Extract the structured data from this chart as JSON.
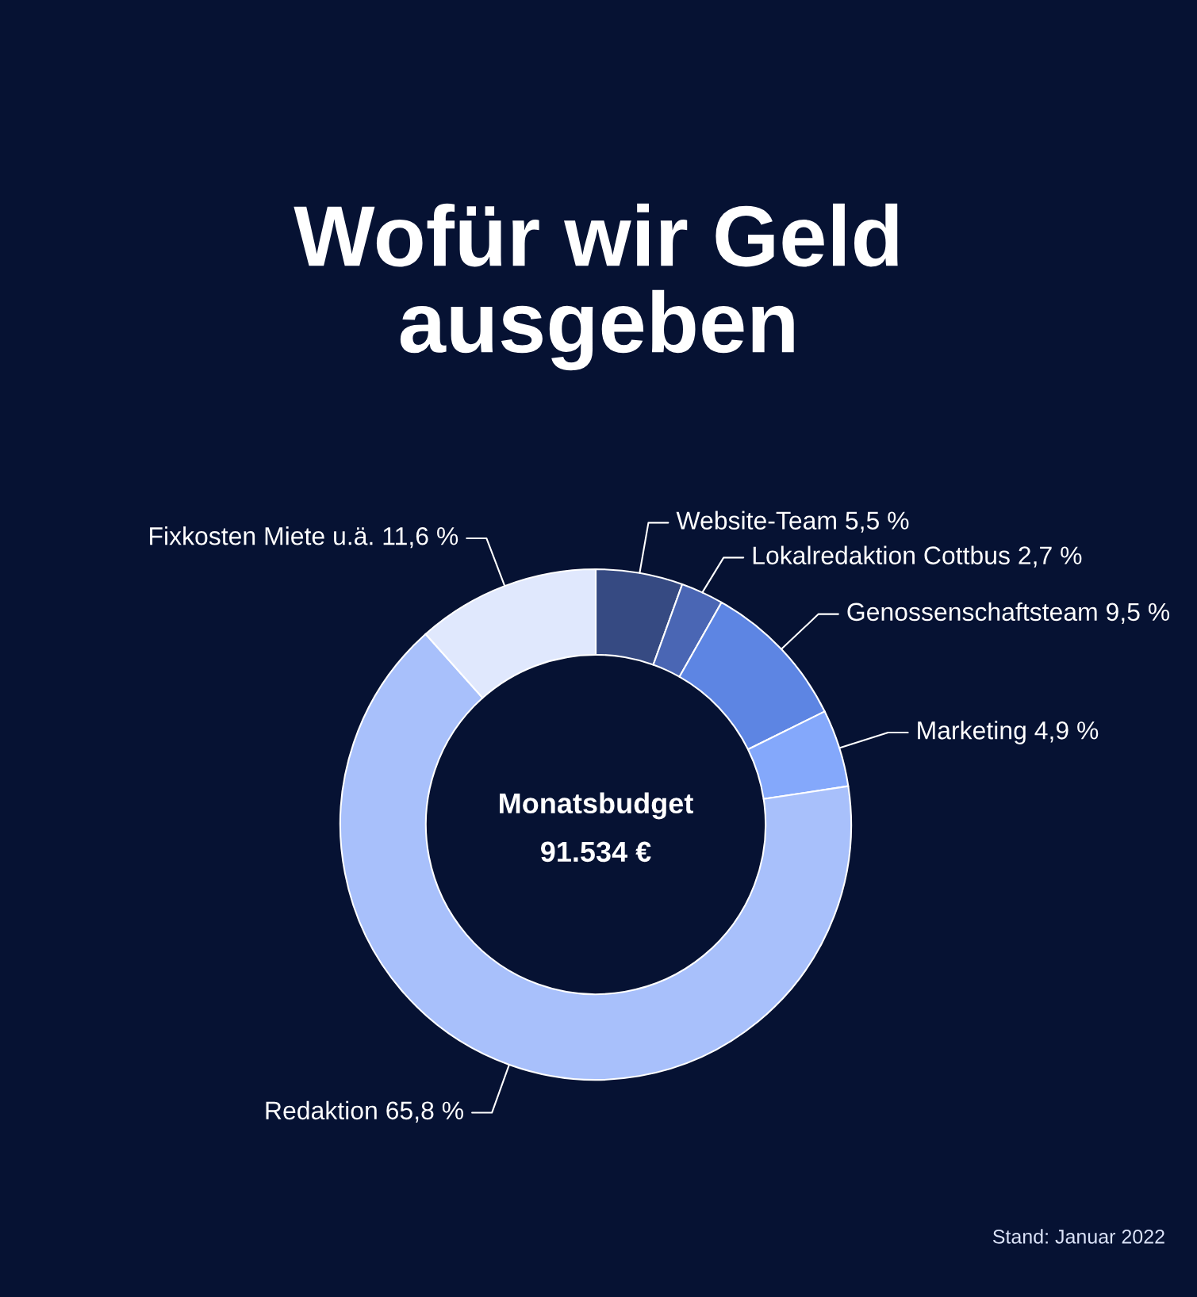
{
  "chart_data": {
    "type": "donut",
    "title": "Wofür wir Geld\nausgeben",
    "categories": [
      "Website-Team",
      "Lokalredaktion Cottbus",
      "Genossenschaftsteam",
      "Marketing",
      "Redaktion",
      "Fixkosten Miete u.ä."
    ],
    "values": [
      5.5,
      2.7,
      9.5,
      4.9,
      65.8,
      11.6
    ],
    "value_labels": [
      "5,5 %",
      "2,7 %",
      "9,5 %",
      "4,9 %",
      "65,8 %",
      "11,6 %"
    ],
    "colors": [
      "#364a82",
      "#4a66b4",
      "#5d85e3",
      "#84a8fb",
      "#a8c0fb",
      "#e0e8fd"
    ],
    "annotations": [
      "Monatsbudget",
      "91.534 €",
      "Stand: Januar 2022"
    ]
  }
}
